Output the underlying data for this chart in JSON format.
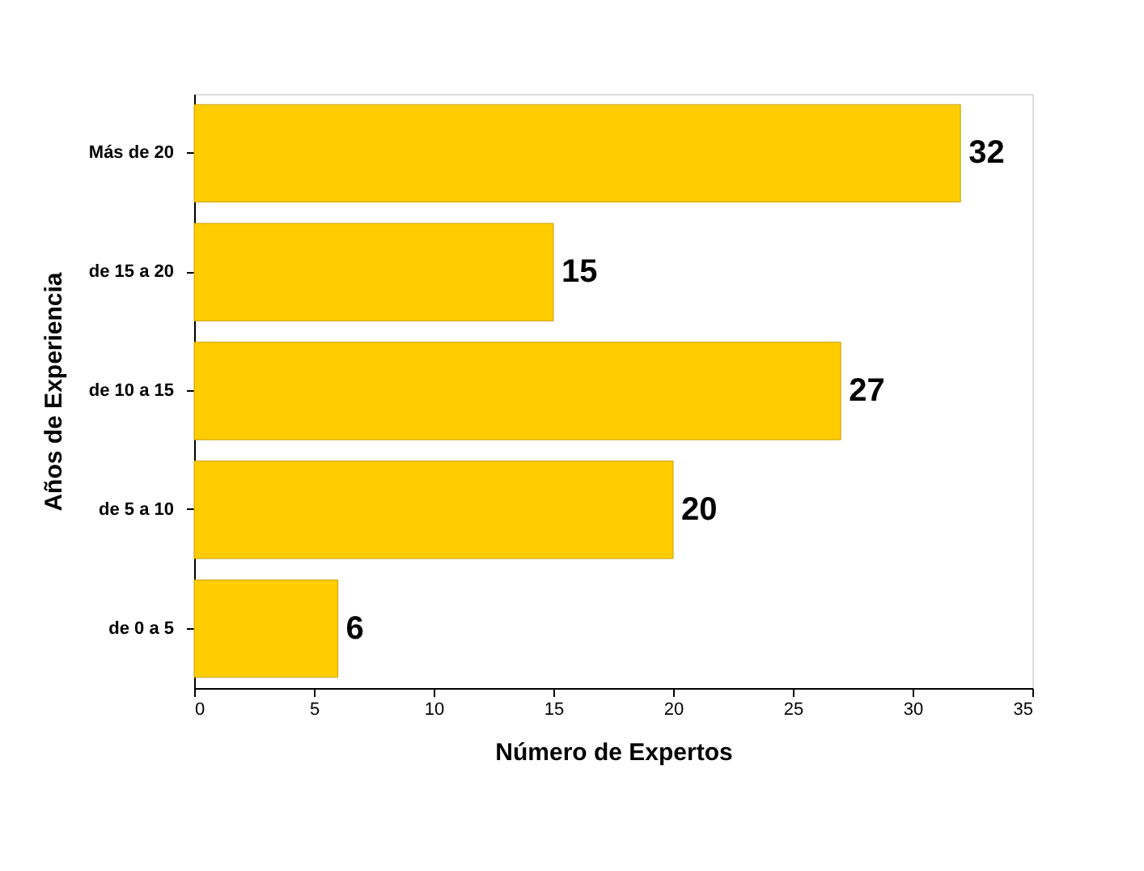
{
  "chart_data": {
    "type": "bar",
    "orientation": "horizontal",
    "xlabel": "Número de Expertos",
    "ylabel": "Años de Experiencia",
    "categories": [
      "Más de 20",
      "de 15 a 20",
      "de 10 a 15",
      "de 5 a 10",
      "de 0 a 5"
    ],
    "values": [
      32,
      15,
      27,
      20,
      6
    ],
    "color": "#ffcc00",
    "xlim": [
      0,
      35
    ],
    "xticks": [
      0,
      5,
      10,
      15,
      20,
      25,
      30,
      35
    ],
    "grid": false,
    "data_labels": true
  }
}
